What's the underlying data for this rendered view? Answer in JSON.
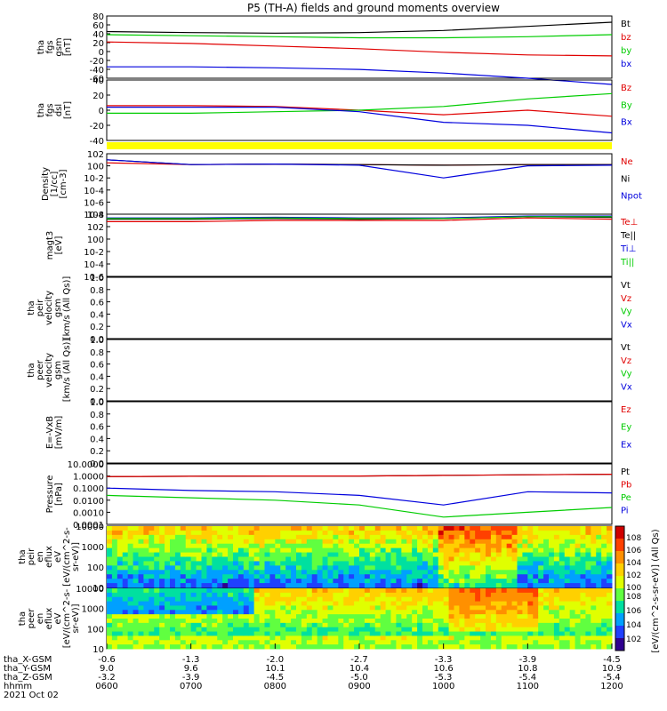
{
  "title": "P5 (TH-A) fields and ground moments overview",
  "colors": {
    "black": "#000000",
    "red": "#e00000",
    "green": "#00cc00",
    "blue": "#0000dd",
    "yellow": "#ffff00"
  },
  "chart_data": [
    {
      "id": "fgs_gsm",
      "type": "line",
      "ylabel": [
        "tha",
        "fgs",
        "gsm",
        "[nT]"
      ],
      "ylim": [
        -40,
        80
      ],
      "ticks": [
        80,
        60,
        40,
        20,
        0,
        -20,
        -40,
        -60
      ],
      "x": [
        0,
        1,
        2,
        3,
        4,
        5,
        6
      ],
      "series": [
        {
          "name": "Bt",
          "color": "black",
          "values": [
            50,
            48,
            47,
            48,
            52,
            60,
            68
          ]
        },
        {
          "name": "bz",
          "color": "red",
          "values": [
            30,
            27,
            22,
            17,
            10,
            5,
            3
          ]
        },
        {
          "name": "by",
          "color": "green",
          "values": [
            44,
            42,
            40,
            38,
            38,
            40,
            44
          ]
        },
        {
          "name": "bx",
          "color": "blue",
          "values": [
            -18,
            -18,
            -20,
            -23,
            -30,
            -40,
            -52
          ]
        }
      ]
    },
    {
      "id": "fgs_dsl",
      "type": "line",
      "ylabel": [
        "tha",
        "fgs",
        "dsl",
        "[nT]"
      ],
      "ylim": [
        -40,
        40
      ],
      "ticks": [
        40,
        20,
        0,
        -20,
        -40
      ],
      "x": [
        0,
        1,
        2,
        3,
        4,
        5,
        6
      ],
      "series": [
        {
          "name": "Bz",
          "color": "red",
          "values": [
            6,
            6,
            5,
            0,
            -6,
            0,
            -8
          ]
        },
        {
          "name": "By",
          "color": "green",
          "values": [
            -4,
            -4,
            -2,
            0,
            5,
            15,
            22
          ]
        },
        {
          "name": "Bx",
          "color": "blue",
          "values": [
            4,
            4,
            4,
            -2,
            -16,
            -20,
            -30
          ]
        }
      ]
    },
    {
      "id": "density",
      "type": "line",
      "ylog": true,
      "ylabel": [
        "Density",
        "[1/cc]",
        "[cm-3]"
      ],
      "ylim": [
        -8,
        2
      ],
      "ticks": [
        "10^2",
        "10^0",
        "10^-2",
        "10^-4",
        "10^-6",
        "10^-8"
      ],
      "x": [
        0,
        1,
        2,
        3,
        4,
        5,
        6
      ],
      "series": [
        {
          "name": "Ne",
          "color": "red",
          "values": [
            0.5,
            0.2,
            0.3,
            0.2,
            0.1,
            0.2,
            0.2
          ]
        },
        {
          "name": "Ni",
          "color": "black",
          "values": [
            1.0,
            0.2,
            0.3,
            0.2,
            0.1,
            0.2,
            0.2
          ]
        },
        {
          "name": "Npot",
          "color": "blue",
          "values": [
            1.0,
            0.2,
            0.3,
            0.1,
            -2.0,
            0.0,
            0.1
          ]
        }
      ]
    },
    {
      "id": "temp",
      "type": "line",
      "ylog": true,
      "ylabel": [
        "magt3",
        "[eV]"
      ],
      "ylim": [
        -6,
        4
      ],
      "ticks": [
        "10^4",
        "10^2",
        "10^0",
        "10^-2",
        "10^-4",
        "10^-6"
      ],
      "x": [
        0,
        1,
        2,
        3,
        4,
        5,
        6
      ],
      "series": [
        {
          "name": "Te⊥",
          "color": "red",
          "values": [
            2.8,
            2.8,
            3.0,
            3.0,
            3.0,
            3.4,
            3.2
          ]
        },
        {
          "name": "Te||",
          "color": "black",
          "values": [
            3.2,
            3.2,
            3.3,
            3.2,
            3.3,
            3.6,
            3.5
          ]
        },
        {
          "name": "Ti⊥",
          "color": "blue",
          "values": [
            3.4,
            3.4,
            3.5,
            3.4,
            3.4,
            3.7,
            3.7
          ]
        },
        {
          "name": "Ti||",
          "color": "green",
          "values": [
            3.3,
            3.3,
            3.4,
            3.3,
            3.3,
            3.6,
            3.6
          ]
        }
      ]
    },
    {
      "id": "peir_vel",
      "type": "line",
      "ylabel": [
        "tha",
        "peir",
        "velocity",
        "gsm",
        "[km/s (All Qs)]"
      ],
      "ylim": [
        0,
        1
      ],
      "ticks": [
        "1.0",
        "0.8",
        "0.6",
        "0.4",
        "0.2",
        "0.0"
      ],
      "legend": [
        {
          "name": "Vt",
          "color": "black"
        },
        {
          "name": "Vz",
          "color": "red"
        },
        {
          "name": "Vy",
          "color": "green"
        },
        {
          "name": "Vx",
          "color": "blue"
        }
      ]
    },
    {
      "id": "peer_vel",
      "type": "line",
      "ylabel": [
        "tha",
        "peer",
        "velocity",
        "gsm",
        "[km/s (All Qs)]"
      ],
      "ylim": [
        0,
        1
      ],
      "ticks": [
        "1.0",
        "0.8",
        "0.6",
        "0.4",
        "0.2",
        "0.0"
      ],
      "legend": [
        {
          "name": "Vt",
          "color": "black"
        },
        {
          "name": "Vz",
          "color": "red"
        },
        {
          "name": "Vy",
          "color": "green"
        },
        {
          "name": "Vx",
          "color": "blue"
        }
      ]
    },
    {
      "id": "efield",
      "type": "line",
      "ylabel": [
        "E=-VxB",
        "[mV/m]"
      ],
      "ylim": [
        0,
        1
      ],
      "ticks": [
        "1.0",
        "0.8",
        "0.6",
        "0.4",
        "0.2",
        "0.0"
      ],
      "legend": [
        {
          "name": "Ez",
          "color": "red"
        },
        {
          "name": "Ey",
          "color": "green"
        },
        {
          "name": "Ex",
          "color": "blue"
        }
      ]
    },
    {
      "id": "pressure",
      "type": "line",
      "ylog": true,
      "ylabel": [
        "Pressure",
        "[nPa]"
      ],
      "ylim": [
        -4,
        1
      ],
      "ticks": [
        "10.0000",
        "1.0000",
        "0.1000",
        "0.0100",
        "0.0010",
        "0.0001"
      ],
      "x": [
        0,
        1,
        2,
        3,
        4,
        5,
        6
      ],
      "series": [
        {
          "name": "Pt",
          "color": "black",
          "values": [
            -0.05,
            -0.02,
            0.0,
            0.0,
            0.05,
            0.1,
            0.15
          ]
        },
        {
          "name": "Pb",
          "color": "red",
          "values": [
            -0.05,
            -0.02,
            0.0,
            0.0,
            0.05,
            0.1,
            0.15
          ]
        },
        {
          "name": "Pe",
          "color": "green",
          "values": [
            -1.6,
            -1.8,
            -2.0,
            -2.4,
            -3.4,
            -3.0,
            -2.6
          ]
        },
        {
          "name": "Pi",
          "color": "blue",
          "values": [
            -1.0,
            -1.2,
            -1.3,
            -1.6,
            -2.4,
            -1.3,
            -1.4
          ]
        }
      ]
    },
    {
      "id": "peir_spec",
      "type": "heatmap",
      "ylabel": [
        "tha",
        "peir",
        "en",
        "eflux",
        "eV",
        "[eV/(cm^2-s-",
        "sr-eV)]"
      ],
      "ylog": true,
      "ticks": [
        "10000",
        "1000",
        "100",
        "10"
      ]
    },
    {
      "id": "peer_spec",
      "type": "heatmap",
      "ylabel": [
        "tha",
        "peer",
        "en",
        "eflux",
        "eV",
        "[eV/(cm^2-s-",
        "sr-eV)]"
      ],
      "ylog": true,
      "ticks": [
        "10000",
        "1000",
        "100",
        "10"
      ]
    }
  ],
  "colorbar": {
    "label": "[eV/(cm^2-s-sr-eV)] (All Qs)",
    "ticks_top": [
      "10^8",
      "10^6",
      "10^4",
      "10^2",
      "10^0"
    ],
    "ticks_bottom": [
      "10^8",
      "10^6",
      "10^4",
      "10^2"
    ]
  },
  "xaxis": {
    "row_labels": [
      "tha_X-GSM",
      "tha_Y-GSM",
      "tha_Z-GSM",
      "hhmm",
      "2021 Oct 02"
    ],
    "ticks": [
      {
        "x": "-0.6",
        "y": "9.0",
        "z": "-3.2",
        "t": "0600"
      },
      {
        "x": "-1.3",
        "y": "9.6",
        "z": "-3.9",
        "t": "0700"
      },
      {
        "x": "-2.0",
        "y": "10.1",
        "z": "-4.5",
        "t": "0800"
      },
      {
        "x": "-2.7",
        "y": "10.4",
        "z": "-5.0",
        "t": "0900"
      },
      {
        "x": "-3.3",
        "y": "10.6",
        "z": "-5.3",
        "t": "1000"
      },
      {
        "x": "-3.9",
        "y": "10.8",
        "z": "-5.4",
        "t": "1100"
      },
      {
        "x": "-4.5",
        "y": "10.9",
        "z": "-5.4",
        "t": "1200"
      }
    ]
  }
}
